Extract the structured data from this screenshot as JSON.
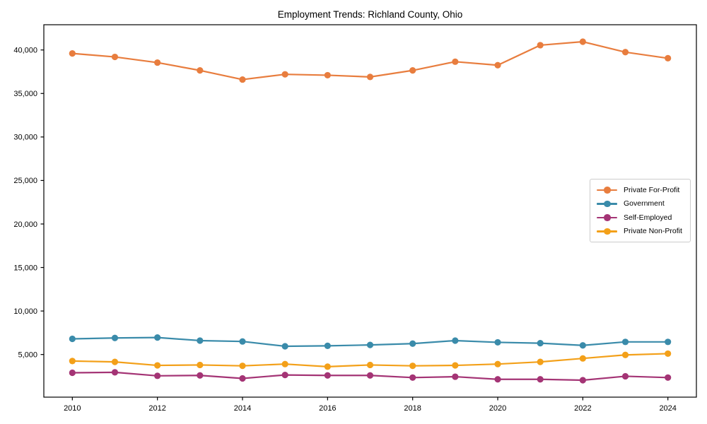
{
  "figure": {
    "background": "#ffffff",
    "frame_color": "#000000",
    "legend_border_color": "#cccccc"
  },
  "chart_data": {
    "type": "line",
    "title": "Employment Trends: Richland County, Ohio",
    "xlabel": "",
    "ylabel": "",
    "grid": false,
    "legend_position": "center-right",
    "xlim": [
      2009.33,
      2024.67
    ],
    "ylim": [
      100,
      42900
    ],
    "x": [
      2010,
      2011,
      2012,
      2013,
      2014,
      2015,
      2016,
      2017,
      2018,
      2019,
      2020,
      2021,
      2022,
      2023,
      2024
    ],
    "x_ticks": [
      {
        "value": 2010,
        "label": "2010"
      },
      {
        "value": 2012,
        "label": "2012"
      },
      {
        "value": 2014,
        "label": "2014"
      },
      {
        "value": 2016,
        "label": "2016"
      },
      {
        "value": 2018,
        "label": "2018"
      },
      {
        "value": 2020,
        "label": "2020"
      },
      {
        "value": 2022,
        "label": "2022"
      },
      {
        "value": 2024,
        "label": "2024"
      }
    ],
    "y_ticks": [
      {
        "value": 5000,
        "label": "5,000"
      },
      {
        "value": 10000,
        "label": "10,000"
      },
      {
        "value": 15000,
        "label": "15,000"
      },
      {
        "value": 20000,
        "label": "20,000"
      },
      {
        "value": 25000,
        "label": "25,000"
      },
      {
        "value": 30000,
        "label": "30,000"
      },
      {
        "value": 35000,
        "label": "35,000"
      },
      {
        "value": 40000,
        "label": "40,000"
      }
    ],
    "series": [
      {
        "name": "Private For-Profit",
        "color": "#e87d3e",
        "values": [
          39600,
          39200,
          38550,
          37650,
          36600,
          37200,
          37100,
          36900,
          37650,
          38650,
          38250,
          40550,
          40950,
          39750,
          39050
        ]
      },
      {
        "name": "Government",
        "color": "#3a8baa",
        "values": [
          6800,
          6900,
          6950,
          6600,
          6500,
          5950,
          6000,
          6100,
          6250,
          6600,
          6400,
          6300,
          6050,
          6450,
          6450
        ]
      },
      {
        "name": "Self-Employed",
        "color": "#a43475",
        "values": [
          2900,
          2950,
          2550,
          2600,
          2250,
          2650,
          2600,
          2600,
          2350,
          2450,
          2150,
          2150,
          2050,
          2500,
          2350
        ]
      },
      {
        "name": "Private Non-Profit",
        "color": "#f3a019",
        "values": [
          4250,
          4150,
          3750,
          3800,
          3700,
          3900,
          3600,
          3800,
          3700,
          3750,
          3900,
          4150,
          4550,
          4950,
          5100
        ]
      }
    ]
  }
}
